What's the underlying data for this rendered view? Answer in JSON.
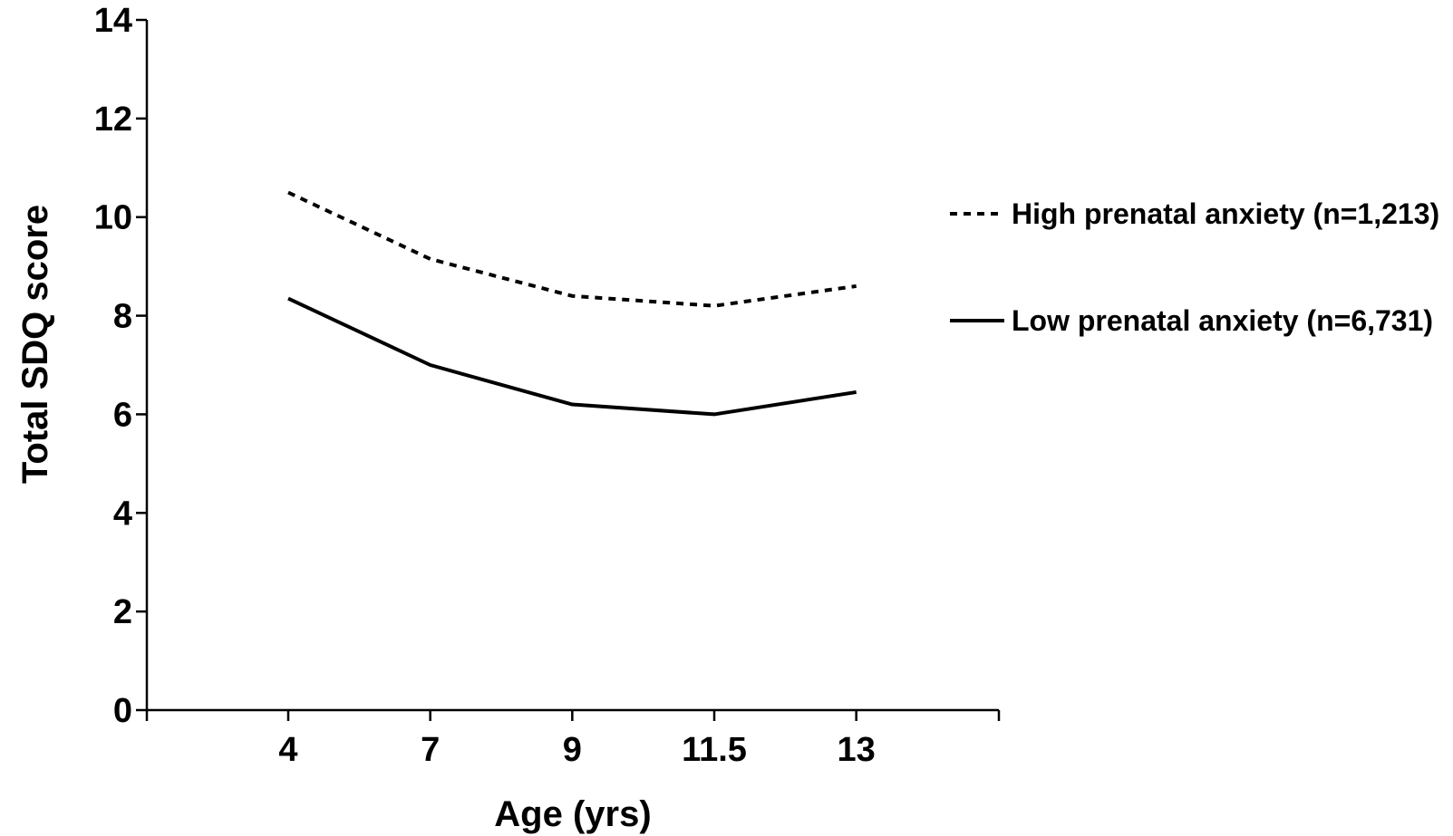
{
  "chart_data": {
    "type": "line",
    "title": "",
    "xlabel": "Age (yrs)",
    "ylabel": "Total SDQ score",
    "categories": [
      "4",
      "7",
      "9",
      "11.5",
      "13"
    ],
    "ylim": [
      0,
      14
    ],
    "yticks": [
      "0",
      "2",
      "4",
      "6",
      "8",
      "10",
      "12",
      "14"
    ],
    "grid": false,
    "legend_position": "right",
    "series": [
      {
        "name": "High prenatal anxiety (n=1,213)",
        "values": [
          10.5,
          9.15,
          8.4,
          8.2,
          8.6
        ],
        "style": "dotted",
        "color": "#000000"
      },
      {
        "name": "Low prenatal anxiety (n=6,731)",
        "values": [
          8.35,
          7.0,
          6.2,
          6.0,
          6.45
        ],
        "style": "solid",
        "color": "#000000"
      }
    ]
  }
}
